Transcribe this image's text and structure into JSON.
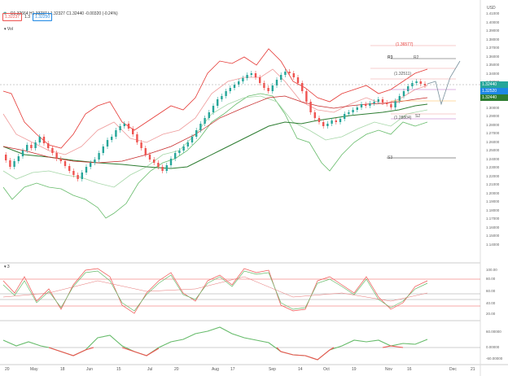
{
  "header": {
    "symbol_icon": "star-icon",
    "ohlc_text": "O1.32664 H1.33237 L1.32327 C1.32440 -0.00320 (-0.24%)",
    "bid": "1.32237",
    "spread": "1.3",
    "ask": "1.32250",
    "indicator_label": "Vol",
    "currency": "USD"
  },
  "price_axis": {
    "labels": [
      "1.41000",
      "1.40000",
      "1.39000",
      "1.38000",
      "1.37000",
      "1.36000",
      "1.35000",
      "1.34000",
      "1.33000",
      "1.32000",
      "1.31000",
      "1.30000",
      "1.29000",
      "1.28000",
      "1.27000",
      "1.26000",
      "1.25000",
      "1.24000",
      "1.23000",
      "1.22000",
      "1.21000",
      "1.20000",
      "1.19000",
      "1.18000",
      "1.17000",
      "1.16000",
      "1.15000",
      "1.14000"
    ],
    "tags": [
      {
        "text": "1.32440",
        "color": "#26a69a"
      },
      {
        "text": "1.32520",
        "color": "#1e88e5"
      },
      {
        "text": "1.32440",
        "color": "#2e7d32"
      }
    ]
  },
  "annotations": {
    "fib_high": "(1.36577)",
    "fib_mid": "(1.32511)",
    "fib_low": "(1.28804)",
    "level_a": "R3",
    "level_b": "R2",
    "level_c": "S2",
    "level_d": "S3"
  },
  "osc1": {
    "label": "3",
    "axis": [
      "100.00",
      "80.00",
      "60.00",
      "40.00",
      "20.00"
    ]
  },
  "osc2": {
    "axis": [
      "60.00000",
      "0.00000",
      "-60.00000"
    ]
  },
  "time_axis": [
    "20",
    "May",
    "18",
    "Jun",
    "15",
    "Jul",
    "20",
    "Aug",
    "17",
    "Sep",
    "14",
    "Oct",
    "19",
    "Nov",
    "16",
    "Dec",
    "21"
  ],
  "colors": {
    "up": "#26a69a",
    "down": "#ef5350",
    "band": "#e53935",
    "ma": "#2e7d32"
  }
}
